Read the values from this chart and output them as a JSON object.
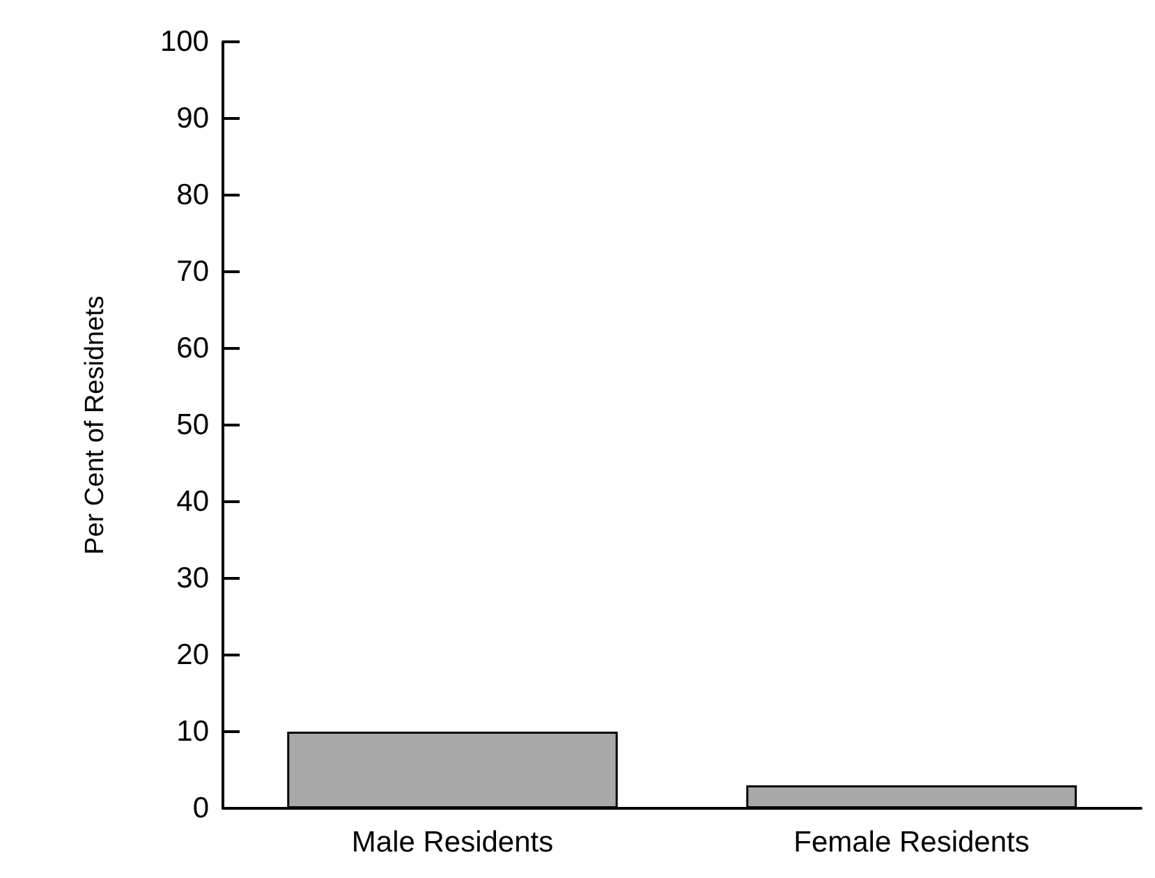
{
  "chart_data": {
    "type": "bar",
    "ylabel": "Per Cent of Residnets",
    "categories": [
      "Male Residents",
      "Female Residents"
    ],
    "values": [
      10,
      3
    ],
    "color": "#a8a8a8",
    "ylim": [
      0,
      100
    ],
    "yticks": [
      0,
      10,
      20,
      30,
      40,
      50,
      60,
      70,
      80,
      90,
      100
    ],
    "grid": false
  }
}
